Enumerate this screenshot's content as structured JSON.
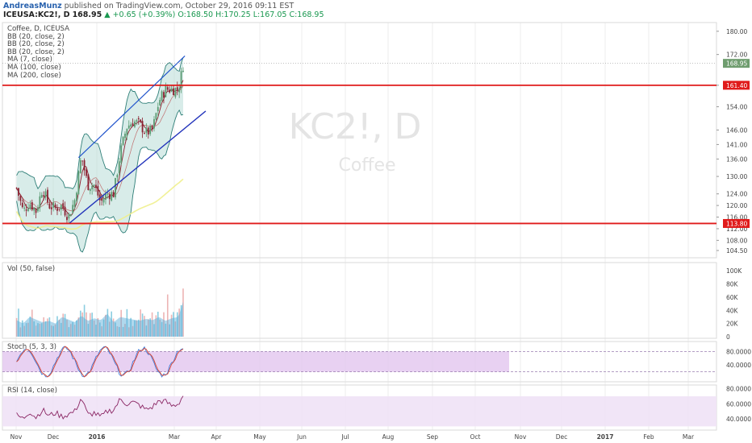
{
  "header": {
    "author": "AndreasMunz",
    "published": "published on TradingView.com, October 29, 2016 09:11 EST",
    "symbol": "ICEUSA:KC2!, D",
    "last": "168.95",
    "change": "▲ +0.65 (+0.39%)",
    "ohlc": "O:168.50 H:170.25 L:167.05 C:168.95"
  },
  "main_indicators": [
    "Coffee, D, ICEUSA",
    "BB (20, close, 2)",
    "BB (20, close, 2)",
    "BB (20, close, 2)",
    "MA (7, close)",
    "MA (100, close)",
    "MA (200, close)"
  ],
  "watermark": {
    "ticker": "KC2!, D",
    "name": "Coffee"
  },
  "price_axis": {
    "ticks": [
      "180.00",
      "172.00",
      "161.40",
      "154.00",
      "146.00",
      "141.00",
      "136.00",
      "130.00",
      "124.00",
      "120.00",
      "116.00",
      "112.00",
      "108.00",
      "104.50"
    ],
    "last_label": "168.95",
    "level_labels": [
      "161.40",
      "113.80"
    ],
    "colors": {
      "last": "#6f9d6f",
      "level": "#e01b1b"
    }
  },
  "time_axis": [
    "Nov",
    "Dec",
    "2016",
    "Mar",
    "Apr",
    "May",
    "Jun",
    "Jul",
    "Aug",
    "Sep",
    "Oct",
    "Nov",
    "Dec",
    "2017",
    "Feb",
    "Mar"
  ],
  "volume": {
    "label": "Vol (50, false)",
    "ticks": [
      "100K",
      "80K",
      "60K",
      "40K",
      "20K",
      "0"
    ]
  },
  "stoch": {
    "label": "Stoch (5, 3, 3)",
    "ticks": [
      "80.0000",
      "40.0000"
    ]
  },
  "rsi": {
    "label": "RSI (14, close)",
    "ticks": [
      "80.0000",
      "60.0000",
      "40.0000"
    ]
  },
  "chart_data": {
    "type": "candlestick",
    "title": "Coffee, D, ICEUSA",
    "ylim": [
      102,
      183
    ],
    "horizontal_levels": [
      161.4,
      113.8
    ],
    "trend_channel": {
      "upper": [
        [
          "Mar 15",
          136.5
        ],
        [
          "Oct 31",
          171.5
        ]
      ],
      "lower": [
        [
          "Feb 25",
          114.0
        ],
        [
          "Dec 15",
          152.5
        ]
      ]
    },
    "last_close": 168.95,
    "close_path": [
      [
        "Nov 2",
        126
      ],
      [
        "Nov 16",
        118
      ],
      [
        "Nov 30",
        121
      ],
      [
        "Dec 14",
        118
      ],
      [
        "Dec 28",
        126
      ],
      [
        "Jan 11",
        120
      ],
      [
        "Jan 25",
        119
      ],
      [
        "Feb 8",
        120
      ],
      [
        "Feb 22",
        116
      ],
      [
        "Mar 7",
        122
      ],
      [
        "Mar 21",
        137
      ],
      [
        "Apr 4",
        127
      ],
      [
        "Apr 18",
        127
      ],
      [
        "May 2",
        121
      ],
      [
        "May 16",
        124
      ],
      [
        "May 30",
        124
      ],
      [
        "Jun 13",
        138
      ],
      [
        "Jun 27",
        147
      ],
      [
        "Jul 11",
        149
      ],
      [
        "Jul 25",
        148
      ],
      [
        "Aug 8",
        145
      ],
      [
        "Aug 22",
        146
      ],
      [
        "Sep 5",
        156
      ],
      [
        "Sep 19",
        160
      ],
      [
        "Oct 3",
        160
      ],
      [
        "Oct 17",
        160
      ],
      [
        "Oct 28",
        168.95
      ]
    ],
    "volume_k": [
      25,
      20,
      30,
      26,
      22,
      24,
      20,
      30,
      26,
      22,
      32,
      24,
      28,
      25,
      35,
      22,
      30,
      28,
      26,
      24,
      27,
      25,
      30,
      24,
      28,
      30,
      55
    ],
    "stoch_values": [
      70,
      20,
      85,
      15,
      80,
      25,
      75,
      20,
      82,
      30,
      88,
      20,
      70,
      25,
      85,
      30,
      78,
      20,
      86,
      25,
      80,
      30,
      75,
      20,
      85,
      60,
      88
    ],
    "rsi_values": [
      45,
      40,
      50,
      42,
      52,
      44,
      48,
      43,
      46,
      50,
      68,
      45,
      48,
      42,
      50,
      52,
      66,
      60,
      62,
      58,
      52,
      56,
      64,
      63,
      57,
      60,
      72
    ],
    "volume_ylim": [
      0,
      110
    ],
    "stoch_ylim": [
      0,
      100
    ],
    "rsi_ylim": [
      25,
      85
    ]
  }
}
